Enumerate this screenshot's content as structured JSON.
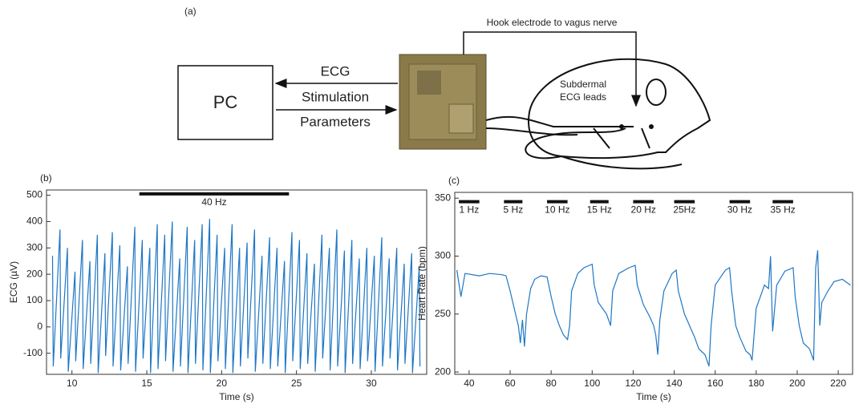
{
  "diagram": {
    "panel_label": "(a)",
    "pc": "PC",
    "ecg": "ECG",
    "stim": [
      "Stimulation",
      "Parameters"
    ],
    "hook": "Hook electrode to vagus nerve",
    "leads": [
      "Subdermal",
      "ECG leads"
    ]
  },
  "chart_data": [
    {
      "type": "line",
      "panel_label": "(b)",
      "xlabel": "Time (s)",
      "ylabel": "ECG (µV)",
      "color": "#1f77c4",
      "xlim": [
        8.3,
        33.7
      ],
      "xticks": [
        10,
        15,
        20,
        25,
        30
      ],
      "ylim": [
        -180,
        520
      ],
      "yticks": [
        -100,
        0,
        100,
        200,
        300,
        400,
        500
      ],
      "annotations": [
        {
          "x": [
            14.5,
            24.5
          ],
          "y": 505,
          "label": "40 Hz"
        }
      ],
      "x": [
        8.7,
        8.75,
        9.2,
        9.25,
        9.7,
        9.75,
        10.2,
        10.25,
        10.7,
        10.75,
        11.2,
        11.25,
        11.7,
        11.75,
        12.2,
        12.25,
        12.7,
        12.75,
        13.2,
        13.25,
        13.7,
        13.75,
        14.2,
        14.25,
        14.7,
        14.75,
        15.2,
        15.25,
        15.7,
        15.75,
        16.2,
        16.25,
        16.7,
        16.75,
        17.2,
        17.25,
        17.7,
        17.75,
        18.2,
        18.25,
        18.7,
        18.75,
        19.2,
        19.25,
        19.7,
        19.75,
        20.2,
        20.25,
        20.7,
        20.75,
        21.2,
        21.25,
        21.7,
        21.75,
        22.2,
        22.25,
        22.7,
        22.75,
        23.2,
        23.25,
        23.7,
        23.75,
        24.2,
        24.25,
        24.7,
        24.75,
        25.2,
        25.25,
        25.7,
        25.75,
        26.2,
        26.25,
        26.7,
        26.75,
        27.2,
        27.25,
        27.7,
        27.75,
        28.2,
        28.25,
        28.7,
        28.75,
        29.2,
        29.25,
        29.7,
        29.75,
        30.2,
        30.25,
        30.7,
        30.75,
        31.2,
        31.25,
        31.7,
        31.75,
        32.2,
        32.25,
        32.7,
        32.75,
        33.2,
        33.25
      ],
      "values": [
        270,
        -150,
        370,
        -120,
        300,
        -170,
        210,
        -130,
        330,
        -160,
        250,
        -140,
        350,
        -175,
        280,
        -110,
        360,
        -150,
        310,
        -165,
        230,
        -140,
        380,
        -170,
        330,
        -120,
        300,
        -175,
        390,
        -160,
        350,
        -130,
        400,
        -170,
        260,
        -150,
        380,
        -175,
        330,
        -140,
        390,
        -165,
        410,
        -175,
        350,
        -130,
        300,
        -160,
        390,
        -175,
        300,
        -150,
        320,
        -120,
        370,
        -170,
        270,
        -140,
        340,
        -160,
        300,
        -150,
        250,
        -175,
        360,
        -130,
        330,
        -160,
        280,
        -140,
        240,
        -170,
        350,
        -120,
        300,
        -165,
        370,
        -150,
        290,
        -175,
        330,
        -140,
        260,
        -160,
        300,
        -130,
        270,
        -170,
        340,
        -150,
        260,
        -120,
        300,
        -165,
        240,
        -140,
        280,
        -175,
        230,
        -150
      ]
    },
    {
      "type": "line",
      "panel_label": "(c)",
      "xlabel": "Time (s)",
      "ylabel": "Heart Rate (bpm)",
      "color": "#1f77c4",
      "xlim": [
        33,
        227
      ],
      "xticks": [
        40,
        60,
        80,
        100,
        120,
        140,
        160,
        180,
        200,
        220
      ],
      "ylim": [
        198,
        355
      ],
      "yticks": [
        200,
        250,
        300,
        350
      ],
      "annotations": [
        {
          "x": [
            35,
            45
          ],
          "y": 347,
          "label": "1 Hz"
        },
        {
          "x": [
            57,
            66
          ],
          "y": 347,
          "label": "5 Hz"
        },
        {
          "x": [
            78,
            88
          ],
          "y": 347,
          "label": "10 Hz"
        },
        {
          "x": [
            99,
            108
          ],
          "y": 347,
          "label": "15 Hz"
        },
        {
          "x": [
            120,
            130
          ],
          "y": 347,
          "label": "20 Hz"
        },
        {
          "x": [
            140,
            150
          ],
          "y": 347,
          "label": "25Hz"
        },
        {
          "x": [
            167,
            177
          ],
          "y": 347,
          "label": "30 Hz"
        },
        {
          "x": [
            188,
            198
          ],
          "y": 347,
          "label": "35 Hz"
        }
      ],
      "x": [
        34,
        36,
        38,
        45,
        50,
        56,
        58,
        60,
        62,
        64,
        65,
        66,
        67,
        68,
        70,
        72,
        75,
        78,
        80,
        82,
        84,
        86,
        88,
        89,
        90,
        93,
        96,
        100,
        101,
        103,
        105,
        107,
        109,
        110,
        113,
        118,
        121,
        122,
        125,
        128,
        130,
        131,
        132,
        133,
        135,
        139,
        141,
        142,
        145,
        148,
        150,
        152,
        155,
        157,
        158,
        160,
        165,
        167,
        168,
        170,
        172,
        175,
        177,
        178,
        180,
        181,
        184,
        186,
        187,
        188,
        190,
        194,
        198,
        199,
        201,
        203,
        206,
        208,
        209,
        210,
        211,
        212,
        215,
        218,
        222,
        226
      ],
      "values": [
        288,
        265,
        285,
        283,
        285,
        284,
        283,
        270,
        255,
        240,
        225,
        245,
        222,
        250,
        272,
        280,
        283,
        282,
        265,
        250,
        240,
        232,
        228,
        240,
        270,
        285,
        290,
        293,
        275,
        260,
        255,
        250,
        240,
        270,
        285,
        290,
        292,
        275,
        258,
        248,
        240,
        232,
        215,
        245,
        270,
        285,
        288,
        270,
        250,
        238,
        230,
        220,
        215,
        205,
        240,
        275,
        288,
        290,
        270,
        240,
        230,
        218,
        215,
        210,
        255,
        260,
        275,
        272,
        300,
        235,
        275,
        287,
        290,
        265,
        240,
        225,
        220,
        210,
        290,
        305,
        240,
        260,
        270,
        278,
        280,
        275
      ]
    }
  ]
}
